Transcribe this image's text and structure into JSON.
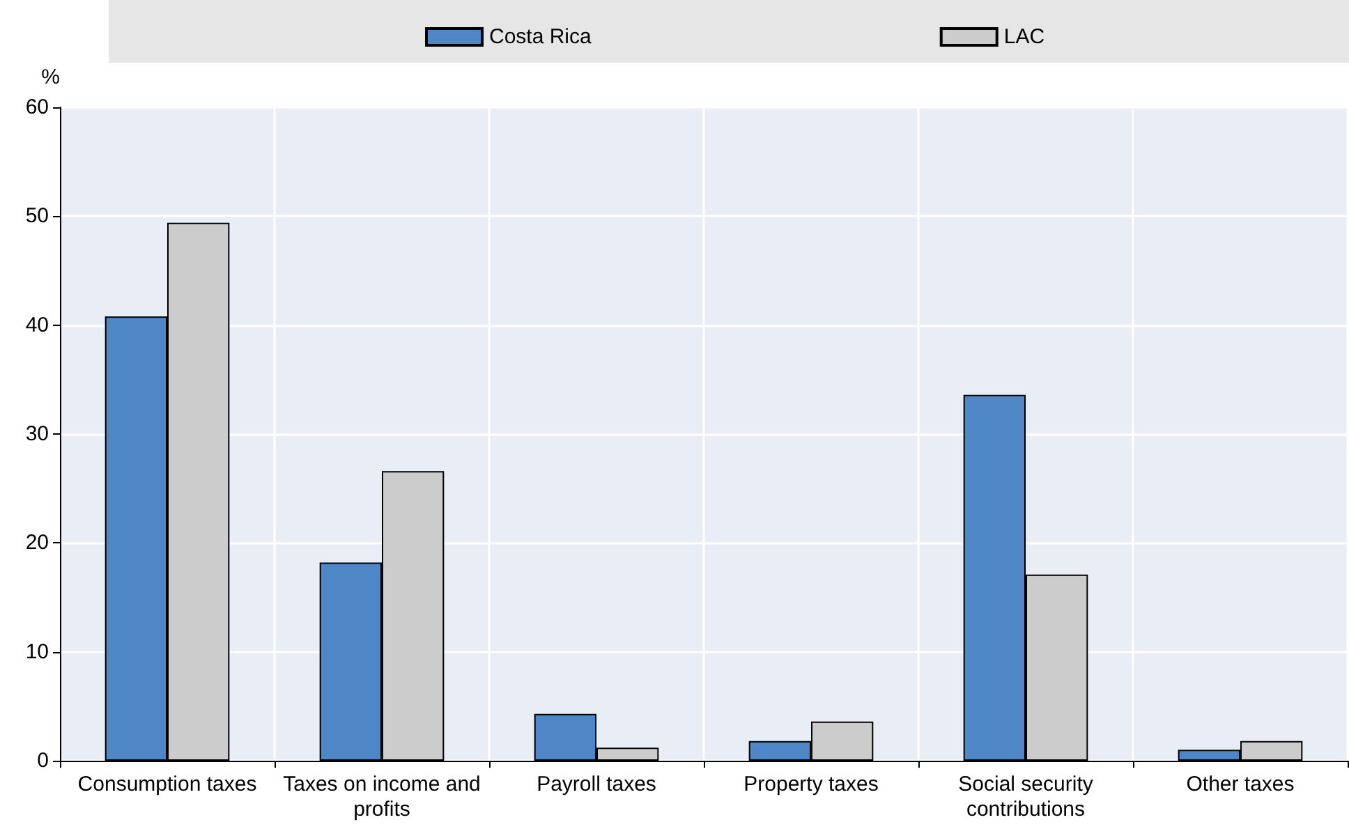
{
  "chart_data": {
    "type": "bar",
    "ylabel": "%",
    "categories": [
      "Consumption taxes",
      "Taxes on income and profits",
      "Payroll taxes",
      "Property taxes",
      "Social security contributions",
      "Other taxes"
    ],
    "series": [
      {
        "name": "Costa Rica",
        "color": "#4e86c6",
        "values": [
          40.8,
          18.2,
          4.3,
          1.8,
          33.6,
          1.0
        ]
      },
      {
        "name": "LAC",
        "color": "#cccccc",
        "values": [
          49.4,
          26.6,
          1.2,
          3.6,
          17.1,
          1.8
        ]
      }
    ],
    "ylim": [
      0,
      60
    ],
    "yticks": [
      0,
      10,
      20,
      30,
      40,
      50,
      60
    ],
    "grid": true,
    "legend": "top"
  }
}
